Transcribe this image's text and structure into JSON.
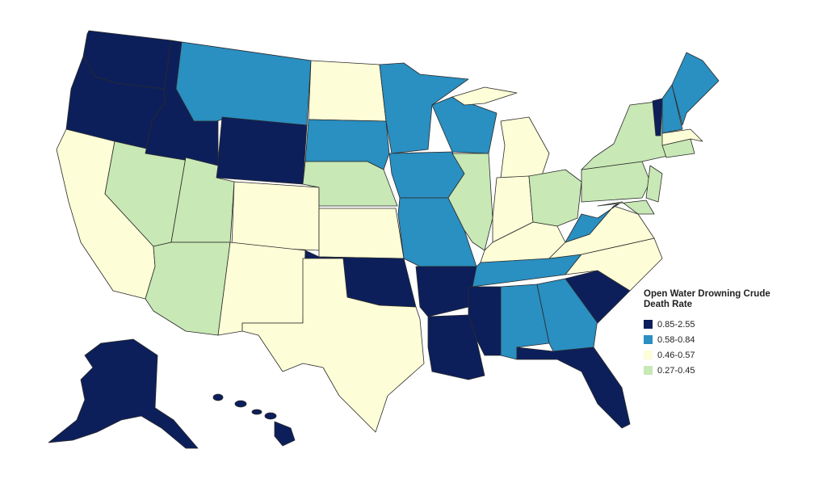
{
  "legend": {
    "title": "Open Water Drowning Crude Death Rate",
    "items": [
      {
        "label": "0.85-2.55",
        "color": "#0c1f5b"
      },
      {
        "label": "0.58-0.84",
        "color": "#2a8fc1"
      },
      {
        "label": "0.46-0.57",
        "color": "#fdfdd7"
      },
      {
        "label": "0.27-0.45",
        "color": "#c8e8b5"
      }
    ]
  }
}
